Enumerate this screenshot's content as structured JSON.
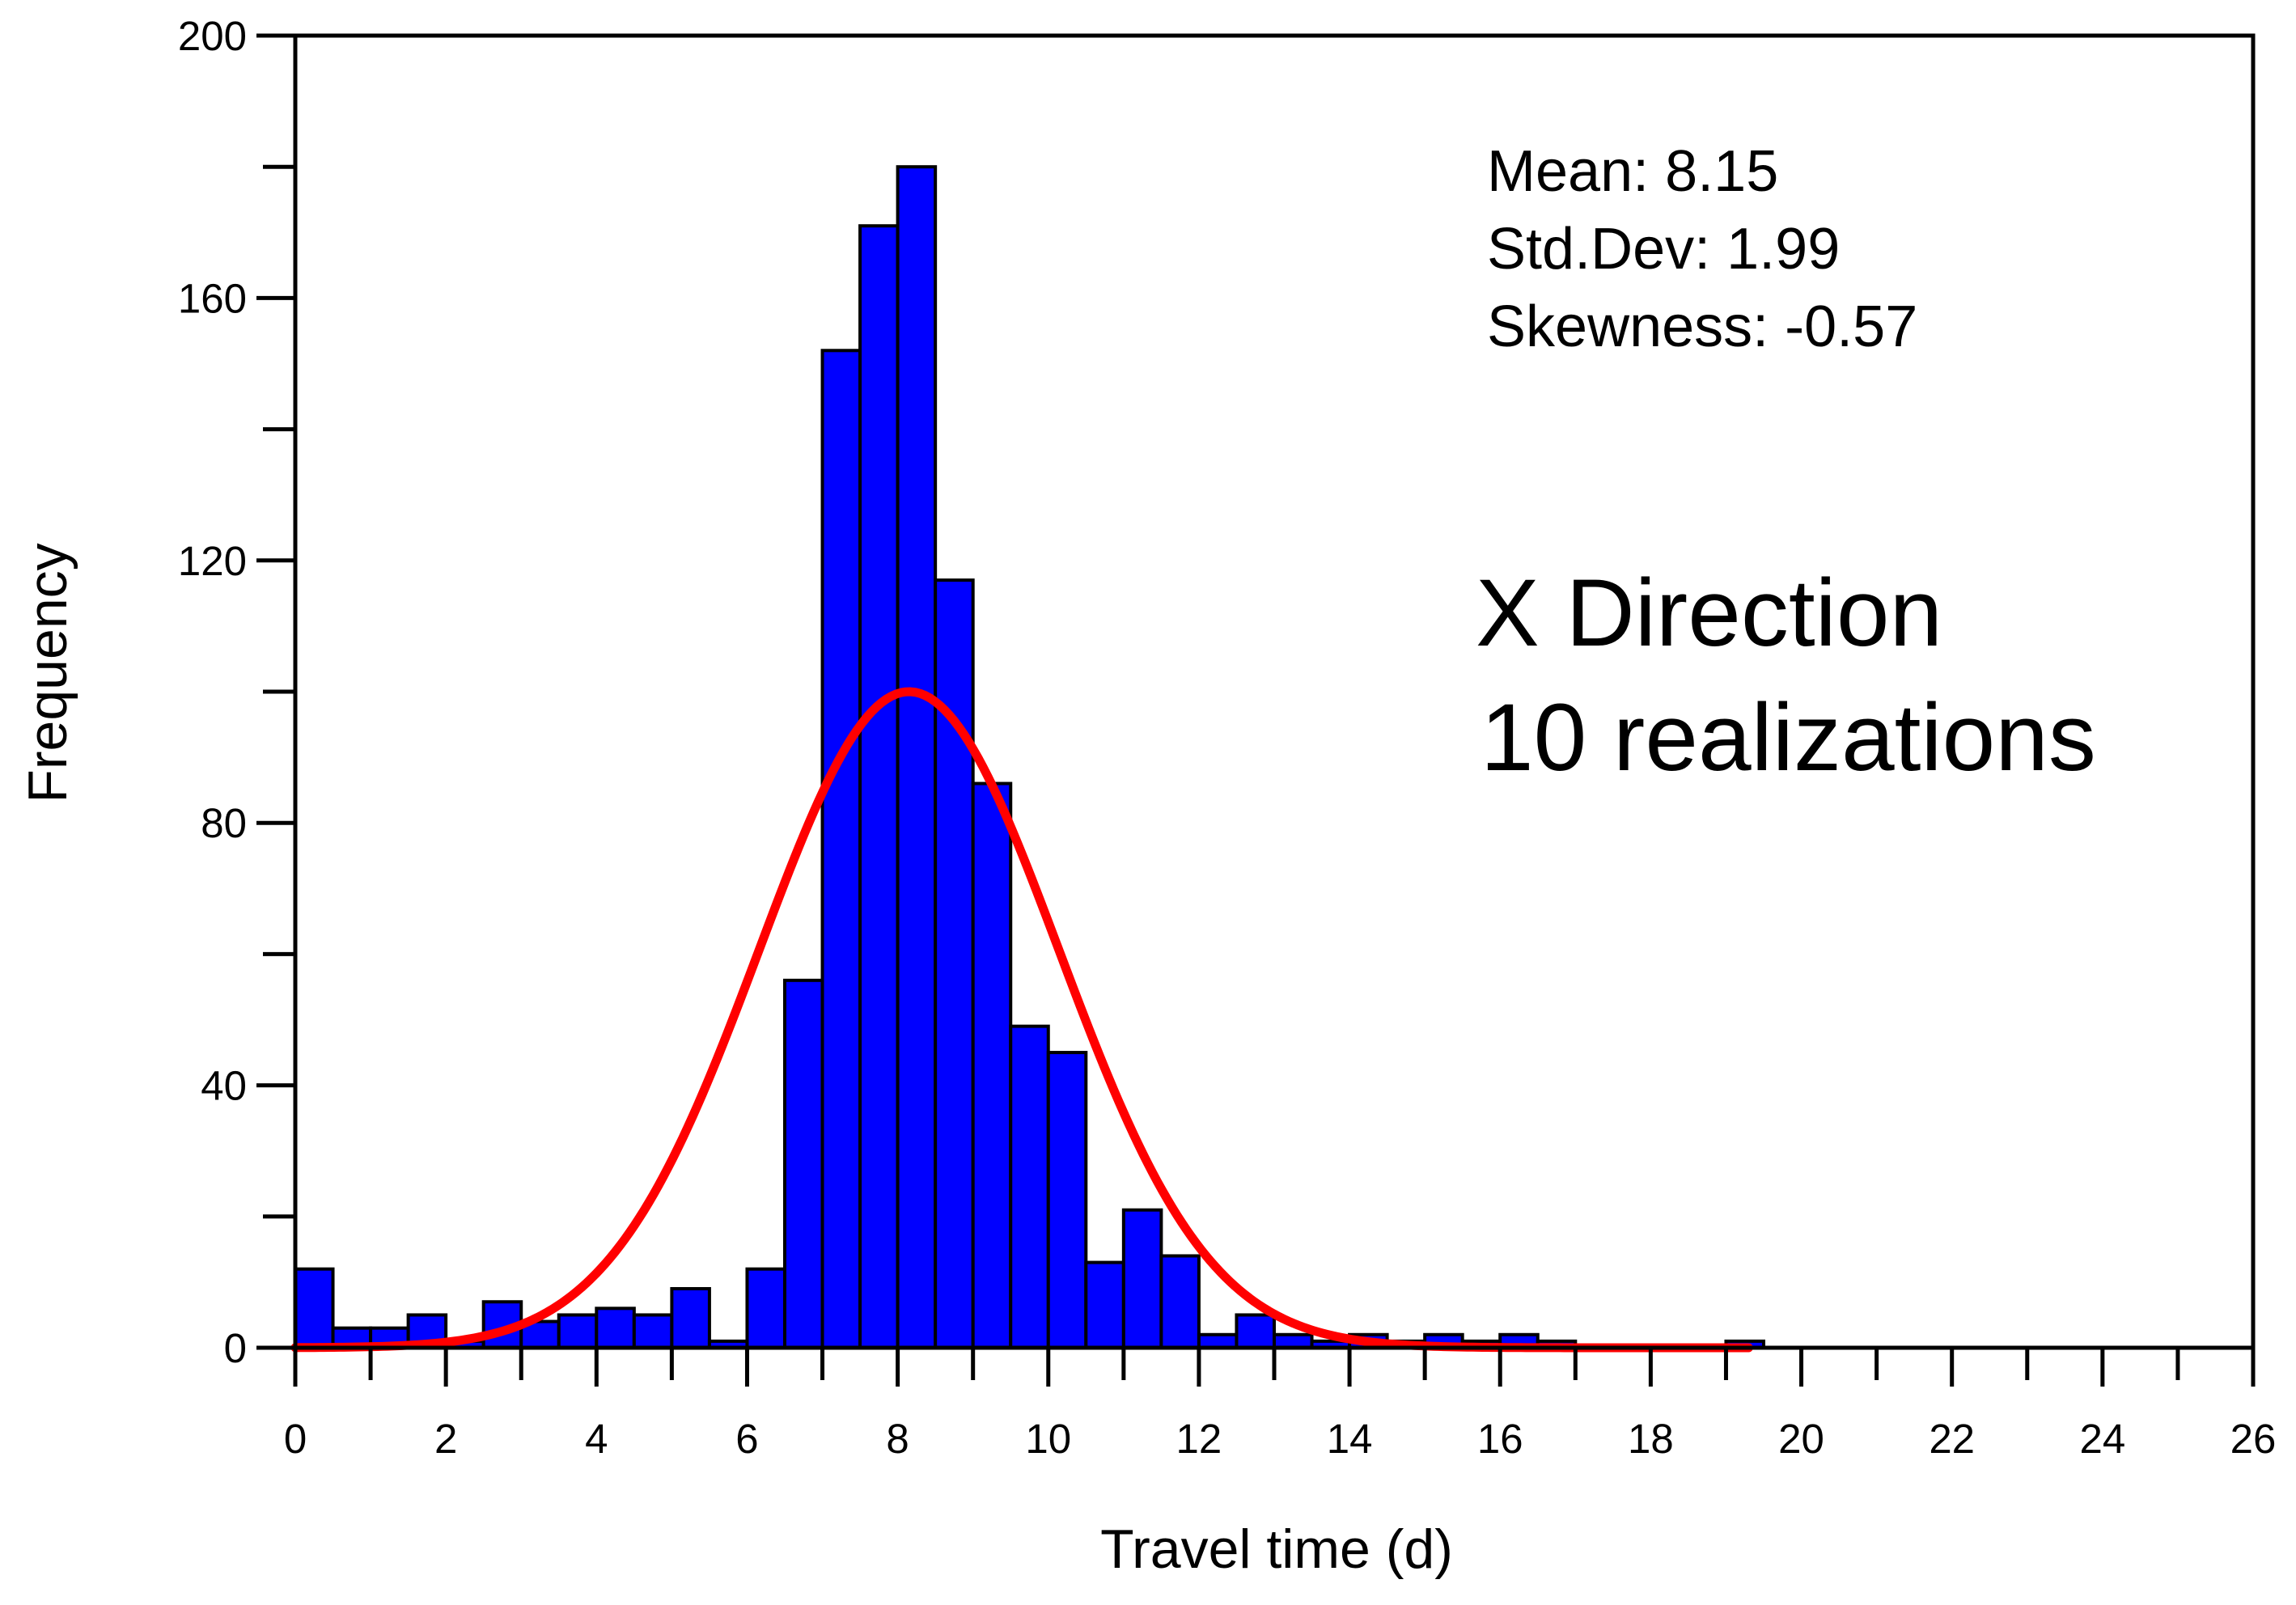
{
  "chart_data": {
    "type": "bar",
    "title": "",
    "xlabel": "Travel time (d)",
    "ylabel": "Frequency",
    "xlim": [
      0,
      26
    ],
    "ylim": [
      0,
      200
    ],
    "x_ticks": [
      "0",
      "2",
      "4",
      "6",
      "8",
      "10",
      "12",
      "14",
      "16",
      "18",
      "20",
      "22",
      "24",
      "26"
    ],
    "y_ticks": [
      "0",
      "40",
      "80",
      "120",
      "160",
      "200"
    ],
    "bin_width": 0.5,
    "bins": [
      {
        "x0": 0.0,
        "value": 12
      },
      {
        "x0": 0.5,
        "value": 3
      },
      {
        "x0": 1.0,
        "value": 3
      },
      {
        "x0": 1.5,
        "value": 5
      },
      {
        "x0": 2.0,
        "value": 1
      },
      {
        "x0": 2.5,
        "value": 7
      },
      {
        "x0": 3.0,
        "value": 4
      },
      {
        "x0": 3.5,
        "value": 5
      },
      {
        "x0": 4.0,
        "value": 6
      },
      {
        "x0": 4.5,
        "value": 5
      },
      {
        "x0": 5.0,
        "value": 9
      },
      {
        "x0": 5.5,
        "value": 1
      },
      {
        "x0": 6.0,
        "value": 12
      },
      {
        "x0": 6.5,
        "value": 56
      },
      {
        "x0": 7.0,
        "value": 152
      },
      {
        "x0": 7.5,
        "value": 171
      },
      {
        "x0": 8.0,
        "value": 180
      },
      {
        "x0": 8.5,
        "value": 117
      },
      {
        "x0": 9.0,
        "value": 86
      },
      {
        "x0": 9.5,
        "value": 49
      },
      {
        "x0": 10.0,
        "value": 45
      },
      {
        "x0": 10.5,
        "value": 13
      },
      {
        "x0": 11.0,
        "value": 21
      },
      {
        "x0": 11.5,
        "value": 14
      },
      {
        "x0": 12.0,
        "value": 2
      },
      {
        "x0": 12.5,
        "value": 5
      },
      {
        "x0": 13.0,
        "value": 2
      },
      {
        "x0": 13.5,
        "value": 1
      },
      {
        "x0": 14.0,
        "value": 2
      },
      {
        "x0": 14.5,
        "value": 1
      },
      {
        "x0": 15.0,
        "value": 2
      },
      {
        "x0": 15.5,
        "value": 1
      },
      {
        "x0": 16.0,
        "value": 2
      },
      {
        "x0": 16.5,
        "value": 1
      },
      {
        "x0": 17.0,
        "value": 0
      },
      {
        "x0": 17.5,
        "value": 0
      },
      {
        "x0": 18.0,
        "value": 0
      },
      {
        "x0": 18.5,
        "value": 0
      },
      {
        "x0": 19.0,
        "value": 1
      }
    ],
    "fit_curve": {
      "type": "normal",
      "mean": 8.15,
      "std": 1.99,
      "peak": 100,
      "x_range": [
        0,
        19.3
      ],
      "color": "#ff0000"
    },
    "bar_color": "#0000ff",
    "annotations": {
      "mean": "Mean: 8.15",
      "std": "Std.Dev: 1.99",
      "skew": "Skewness: -0.57",
      "direction": "X Direction",
      "realizations": "10 realizations"
    }
  }
}
